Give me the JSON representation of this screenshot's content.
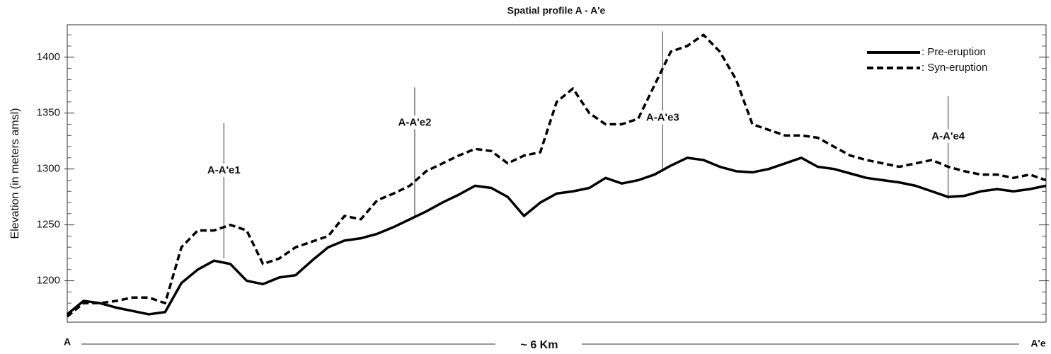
{
  "chart_data": {
    "type": "line",
    "title": "Spatial profile A - A'e",
    "y_label": "Elevation (in meters amsl)",
    "x_start_label": "A",
    "x_end_label": "A'e",
    "x_label": "~ 6 Km",
    "xlim": [
      0,
      6
    ],
    "ylim": [
      1163,
      1429
    ],
    "yticks": [
      1200,
      1250,
      1300,
      1350,
      1400
    ],
    "yticks_minor": [
      1170,
      1180,
      1190,
      1210,
      1220,
      1230,
      1240,
      1260,
      1270,
      1280,
      1290,
      1310,
      1320,
      1330,
      1340,
      1360,
      1370,
      1380,
      1390,
      1410,
      1420
    ],
    "legend": "upper right",
    "x": [
      0,
      0.1,
      0.2,
      0.3,
      0.4,
      0.5,
      0.6,
      0.7,
      0.8,
      0.9,
      1.0,
      1.1,
      1.2,
      1.3,
      1.4,
      1.5,
      1.6,
      1.7,
      1.8,
      1.9,
      2.0,
      2.1,
      2.2,
      2.3,
      2.4,
      2.5,
      2.6,
      2.7,
      2.8,
      2.9,
      3.0,
      3.1,
      3.2,
      3.3,
      3.4,
      3.5,
      3.6,
      3.7,
      3.8,
      3.9,
      4.0,
      4.1,
      4.2,
      4.3,
      4.4,
      4.5,
      4.6,
      4.7,
      4.8,
      4.9,
      5.0,
      5.1,
      5.2,
      5.3,
      5.4,
      5.5,
      5.6,
      5.7,
      5.8,
      5.9,
      6.0
    ],
    "series": [
      {
        "name": ": Pre-eruption",
        "color": "#000000",
        "dash": "solid",
        "values": [
          1170,
          1182,
          1180,
          1176,
          1173,
          1170,
          1172,
          1198,
          1210,
          1218,
          1215,
          1200,
          1197,
          1203,
          1205,
          1218,
          1230,
          1236,
          1238,
          1242,
          1248,
          1255,
          1262,
          1270,
          1277,
          1285,
          1283,
          1275,
          1258,
          1270,
          1278,
          1280,
          1283,
          1292,
          1287,
          1290,
          1295,
          1303,
          1310,
          1308,
          1302,
          1298,
          1297,
          1300,
          1305,
          1310,
          1302,
          1300,
          1296,
          1292,
          1290,
          1288,
          1285,
          1280,
          1275,
          1276,
          1280,
          1282,
          1280,
          1282,
          1285
        ]
      },
      {
        "name": ": Syn-eruption",
        "color": "#000000",
        "dash": "dashed",
        "values": [
          1168,
          1180,
          1180,
          1182,
          1185,
          1185,
          1180,
          1230,
          1245,
          1245,
          1250,
          1245,
          1215,
          1220,
          1230,
          1235,
          1240,
          1258,
          1255,
          1272,
          1278,
          1285,
          1298,
          1305,
          1312,
          1318,
          1316,
          1305,
          1312,
          1315,
          1360,
          1372,
          1350,
          1340,
          1340,
          1345,
          1375,
          1405,
          1410,
          1420,
          1405,
          1380,
          1340,
          1335,
          1330,
          1330,
          1328,
          1320,
          1312,
          1308,
          1305,
          1302,
          1305,
          1308,
          1302,
          1298,
          1295,
          1295,
          1292,
          1295,
          1290
        ]
      }
    ],
    "annotations": [
      {
        "text": "A-A'e1",
        "x": 0.96,
        "range": [
          1220,
          1341
        ]
      },
      {
        "text": "A-A'e2",
        "x": 2.13,
        "range": [
          1258,
          1373
        ]
      },
      {
        "text": "A-A'e3",
        "x": 3.65,
        "range": [
          1299,
          1423
        ]
      },
      {
        "text": "A-A'e4",
        "x": 5.4,
        "range": [
          1273,
          1365
        ]
      }
    ]
  }
}
